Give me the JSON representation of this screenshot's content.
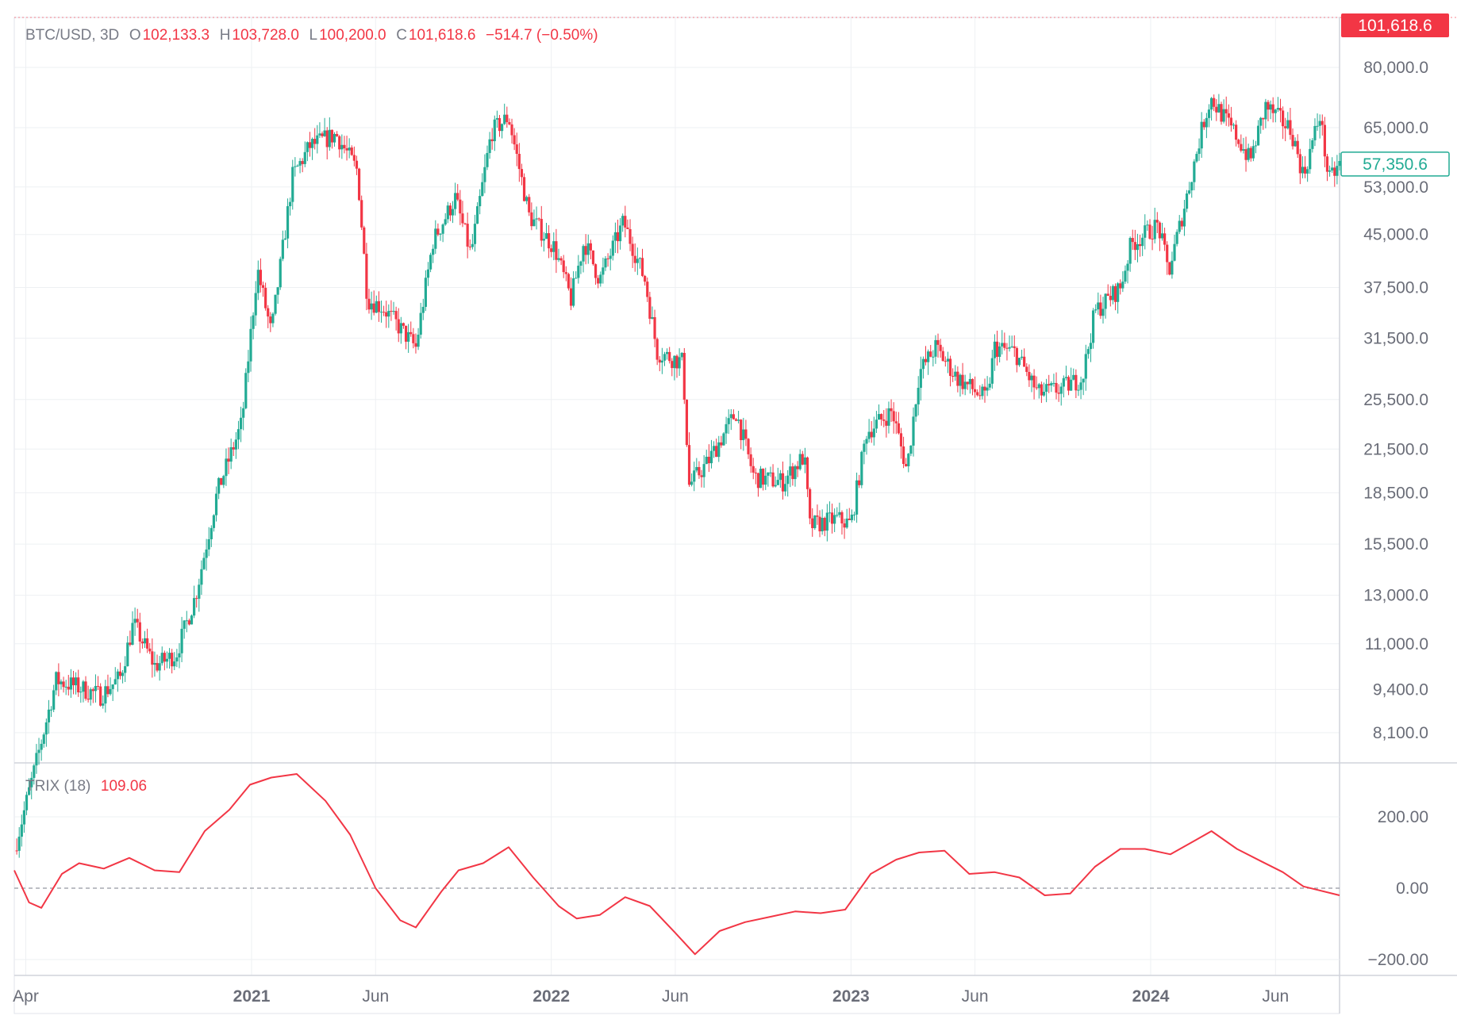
{
  "legend": {
    "symbol": "BTC/USD, 3D",
    "o_label": "O",
    "open": "102,133.3",
    "h_label": "H",
    "high": "103,728.0",
    "l_label": "L",
    "low": "100,200.0",
    "c_label": "C",
    "close": "101,618.6",
    "change": "−514.7 (−0.50%)"
  },
  "indicator": {
    "name": "TRIX (18)",
    "value": "109.06"
  },
  "price_tags": [
    {
      "value": 101618.6,
      "text": "101,618.6",
      "style": "filled",
      "color": "#f23645"
    },
    {
      "value": 57350.6,
      "text": "57,350.6",
      "style": "outline",
      "color": "#22ab94"
    }
  ],
  "colors": {
    "up": "#22ab94",
    "down": "#f23645",
    "trix_line": "#f23645",
    "grid": "#eef0f3",
    "axis_text": "#6a6d78"
  },
  "chart_data": [
    {
      "type": "candlestick",
      "title": "BTC/USD, 3D",
      "scale": "log",
      "time_axis": {
        "range": [
          "2020-03-18",
          "2024-08-18"
        ],
        "ticks": [
          {
            "date": "2020-04-01",
            "label": "Apr",
            "bold": false
          },
          {
            "date": "2021-01-01",
            "label": "2021",
            "bold": true
          },
          {
            "date": "2021-06-01",
            "label": "Jun",
            "bold": false
          },
          {
            "date": "2022-01-01",
            "label": "2022",
            "bold": true
          },
          {
            "date": "2022-06-01",
            "label": "Jun",
            "bold": false
          },
          {
            "date": "2023-01-01",
            "label": "2023",
            "bold": true
          },
          {
            "date": "2023-06-01",
            "label": "Jun",
            "bold": false
          },
          {
            "date": "2024-01-01",
            "label": "2024",
            "bold": true
          },
          {
            "date": "2024-06-01",
            "label": "Jun",
            "bold": false
          }
        ]
      },
      "y_ticks": [
        {
          "value": 80000,
          "label": "80,000.0"
        },
        {
          "value": 65000,
          "label": "65,000.0"
        },
        {
          "value": 53000,
          "label": "53,000.0"
        },
        {
          "value": 45000,
          "label": "45,000.0"
        },
        {
          "value": 37500,
          "label": "37,500.0"
        },
        {
          "value": 31500,
          "label": "31,500.0"
        },
        {
          "value": 25500,
          "label": "25,500.0"
        },
        {
          "value": 21500,
          "label": "21,500.0"
        },
        {
          "value": 18500,
          "label": "18,500.0"
        },
        {
          "value": 15500,
          "label": "15,500.0"
        },
        {
          "value": 13000,
          "label": "13,000.0"
        },
        {
          "value": 11000,
          "label": "11,000.0"
        },
        {
          "value": 9400,
          "label": "9,400.0"
        },
        {
          "value": 8100,
          "label": "8,100.0"
        }
      ],
      "approx_close_path": [
        [
          "2020-03-18",
          5400
        ],
        [
          "2020-04-10",
          7000
        ],
        [
          "2020-05-08",
          9700
        ],
        [
          "2020-06-01",
          9500
        ],
        [
          "2020-07-01",
          9200
        ],
        [
          "2020-07-25",
          9800
        ],
        [
          "2020-08-10",
          11800
        ],
        [
          "2020-09-05",
          10200
        ],
        [
          "2020-10-01",
          10600
        ],
        [
          "2020-10-25",
          13000
        ],
        [
          "2020-11-20",
          18500
        ],
        [
          "2020-12-20",
          23500
        ],
        [
          "2021-01-08",
          40000
        ],
        [
          "2021-01-25",
          32000
        ],
        [
          "2021-02-20",
          55000
        ],
        [
          "2021-03-13",
          61000
        ],
        [
          "2021-04-14",
          63500
        ],
        [
          "2021-05-10",
          56000
        ],
        [
          "2021-05-22",
          36000
        ],
        [
          "2021-06-10",
          35000
        ],
        [
          "2021-07-20",
          30500
        ],
        [
          "2021-08-10",
          44000
        ],
        [
          "2021-09-06",
          51000
        ],
        [
          "2021-09-25",
          42000
        ],
        [
          "2021-10-20",
          64000
        ],
        [
          "2021-11-10",
          67500
        ],
        [
          "2021-12-05",
          48000
        ],
        [
          "2022-01-05",
          43000
        ],
        [
          "2022-01-25",
          36000
        ],
        [
          "2022-02-10",
          44000
        ],
        [
          "2022-03-01",
          38500
        ],
        [
          "2022-03-30",
          47000
        ],
        [
          "2022-04-25",
          38500
        ],
        [
          "2022-05-10",
          30000
        ],
        [
          "2022-06-10",
          29000
        ],
        [
          "2022-06-18",
          19000
        ],
        [
          "2022-07-10",
          20500
        ],
        [
          "2022-08-14",
          24400
        ],
        [
          "2022-09-05",
          19500
        ],
        [
          "2022-10-10",
          19200
        ],
        [
          "2022-11-05",
          21000
        ],
        [
          "2022-11-12",
          16500
        ],
        [
          "2022-12-15",
          16900
        ],
        [
          "2023-01-01",
          16600
        ],
        [
          "2023-01-20",
          22800
        ],
        [
          "2023-02-20",
          24500
        ],
        [
          "2023-03-10",
          20000
        ],
        [
          "2023-03-25",
          28000
        ],
        [
          "2023-04-14",
          30500
        ],
        [
          "2023-05-10",
          27500
        ],
        [
          "2023-06-15",
          25500
        ],
        [
          "2023-06-25",
          30500
        ],
        [
          "2023-07-20",
          30000
        ],
        [
          "2023-08-17",
          26000
        ],
        [
          "2023-09-15",
          26500
        ],
        [
          "2023-10-10",
          27500
        ],
        [
          "2023-10-25",
          34500
        ],
        [
          "2023-11-25",
          37500
        ],
        [
          "2023-12-08",
          43500
        ],
        [
          "2024-01-10",
          46500
        ],
        [
          "2024-01-23",
          39500
        ],
        [
          "2024-02-15",
          52000
        ],
        [
          "2024-03-05",
          66000
        ],
        [
          "2024-03-14",
          72000
        ],
        [
          "2024-04-15",
          63000
        ],
        [
          "2024-05-01",
          58000
        ],
        [
          "2024-05-20",
          70000
        ],
        [
          "2024-06-20",
          64500
        ],
        [
          "2024-07-05",
          55000
        ],
        [
          "2024-07-25",
          68000
        ],
        [
          "2024-08-05",
          54000
        ],
        [
          "2024-08-18",
          57350
        ]
      ]
    },
    {
      "type": "line",
      "title": "TRIX (18)",
      "y_ticks": [
        {
          "value": 200,
          "label": "200.00"
        },
        {
          "value": 0,
          "label": "0.00"
        },
        {
          "value": -200,
          "label": "−200.00"
        }
      ],
      "zero_line": true,
      "series": [
        {
          "values": [
            [
              "2020-03-18",
              50
            ],
            [
              "2020-04-05",
              -40
            ],
            [
              "2020-04-20",
              -55
            ],
            [
              "2020-05-15",
              40
            ],
            [
              "2020-06-05",
              70
            ],
            [
              "2020-07-05",
              55
            ],
            [
              "2020-08-05",
              85
            ],
            [
              "2020-09-05",
              50
            ],
            [
              "2020-10-05",
              45
            ],
            [
              "2020-11-05",
              160
            ],
            [
              "2020-12-05",
              220
            ],
            [
              "2020-12-30",
              290
            ],
            [
              "2021-01-25",
              310
            ],
            [
              "2021-02-25",
              320
            ],
            [
              "2021-04-01",
              245
            ],
            [
              "2021-05-01",
              150
            ],
            [
              "2021-06-01",
              0
            ],
            [
              "2021-07-01",
              -90
            ],
            [
              "2021-07-20",
              -110
            ],
            [
              "2021-08-20",
              -10
            ],
            [
              "2021-09-10",
              50
            ],
            [
              "2021-10-10",
              70
            ],
            [
              "2021-11-10",
              115
            ],
            [
              "2021-12-10",
              30
            ],
            [
              "2022-01-10",
              -50
            ],
            [
              "2022-02-01",
              -85
            ],
            [
              "2022-03-01",
              -75
            ],
            [
              "2022-04-01",
              -25
            ],
            [
              "2022-05-01",
              -50
            ],
            [
              "2022-06-01",
              -125
            ],
            [
              "2022-06-25",
              -185
            ],
            [
              "2022-07-25",
              -120
            ],
            [
              "2022-08-25",
              -95
            ],
            [
              "2022-09-25",
              -80
            ],
            [
              "2022-10-25",
              -65
            ],
            [
              "2022-11-25",
              -70
            ],
            [
              "2022-12-25",
              -60
            ],
            [
              "2023-01-25",
              40
            ],
            [
              "2023-02-25",
              80
            ],
            [
              "2023-03-25",
              100
            ],
            [
              "2023-04-25",
              105
            ],
            [
              "2023-05-25",
              40
            ],
            [
              "2023-06-25",
              45
            ],
            [
              "2023-07-25",
              30
            ],
            [
              "2023-08-25",
              -20
            ],
            [
              "2023-09-25",
              -15
            ],
            [
              "2023-10-25",
              60
            ],
            [
              "2023-11-25",
              110
            ],
            [
              "2023-12-25",
              110
            ],
            [
              "2024-01-25",
              95
            ],
            [
              "2024-02-25",
              135
            ],
            [
              "2024-03-15",
              160
            ],
            [
              "2024-04-15",
              110
            ],
            [
              "2024-05-15",
              75
            ],
            [
              "2024-06-10",
              45
            ],
            [
              "2024-07-05",
              5
            ],
            [
              "2024-08-18",
              -20
            ]
          ]
        }
      ]
    }
  ]
}
